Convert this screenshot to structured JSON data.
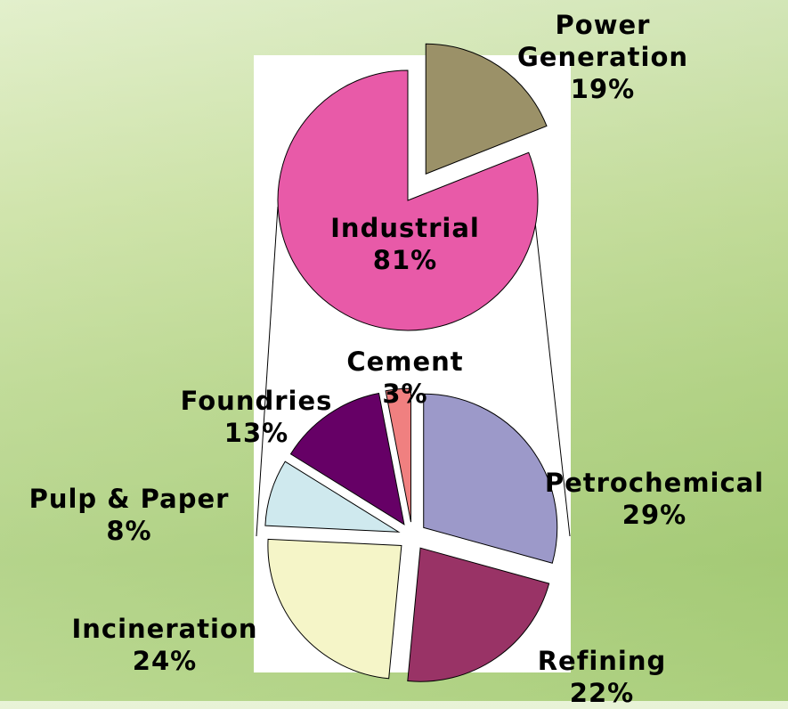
{
  "chart_data": [
    {
      "type": "pie",
      "categories": [
        "Power Generation",
        "Industrial"
      ],
      "values": [
        19,
        81
      ],
      "value_labels": [
        "19%",
        "81%"
      ],
      "colors": [
        "#9b9168",
        "#e85aa8"
      ]
    },
    {
      "type": "pie",
      "categories": [
        "Petrochemical",
        "Refining",
        "Incineration",
        "Pulp & Paper",
        "Foundries",
        "Cement"
      ],
      "values": [
        29,
        22,
        24,
        8,
        13,
        3
      ],
      "value_labels": [
        "29%",
        "22%",
        "24%",
        "8%",
        "13%",
        "3%"
      ],
      "colors": [
        "#9c99c9",
        "#993366",
        "#f5f5c8",
        "#cfe9ee",
        "#660066",
        "#f08080"
      ]
    }
  ]
}
